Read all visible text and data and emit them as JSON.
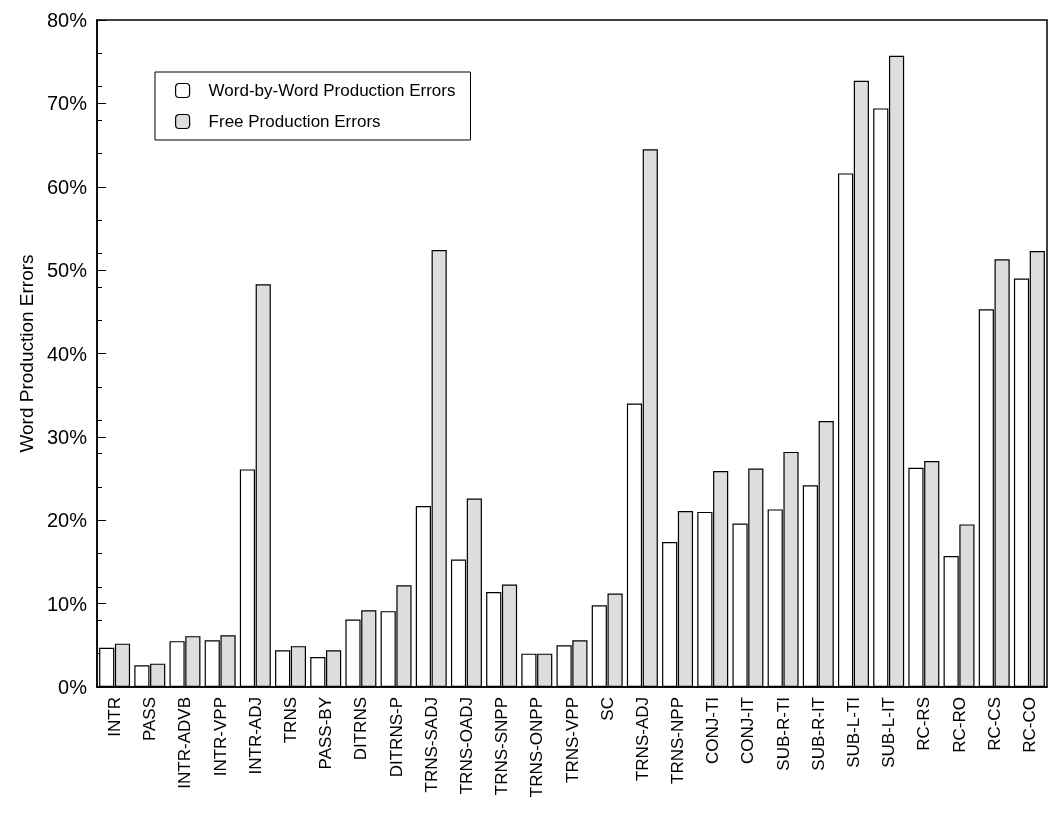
{
  "chart_data": {
    "type": "bar",
    "ylabel": "Word Production Errors",
    "categories": [
      "INTR",
      "PASS",
      "INTR-ADVB",
      "INTR-VPP",
      "INTR-ADJ",
      "TRNS",
      "PASS-BY",
      "DITRNS",
      "DITRNS-P",
      "TRNS-SADJ",
      "TRNS-OADJ",
      "TRNS-SNPP",
      "TRNS-ONPP",
      "TRNS-VPP",
      "SC",
      "TRNS-ADJ",
      "TRNS-NPP",
      "CONJ-TI",
      "CONJ-IT",
      "SUB-R-TI",
      "SUB-R-IT",
      "SUB-L-TI",
      "SUB-L-IT",
      "RC-RS",
      "RC-RO",
      "RC-CS",
      "RC-CO"
    ],
    "series": [
      {
        "name": "Word-by-Word Production Errors",
        "color": "#ffffff",
        "values": [
          4.7,
          2.6,
          5.5,
          5.6,
          26.1,
          4.4,
          3.6,
          8.1,
          9.1,
          21.7,
          15.3,
          11.4,
          4.0,
          5.0,
          9.8,
          34.0,
          17.4,
          21.0,
          19.6,
          21.3,
          24.2,
          61.6,
          69.4,
          26.3,
          15.7,
          45.3,
          49.0
        ]
      },
      {
        "name": "Free Production Errors",
        "color": "#dddddd",
        "values": [
          5.2,
          2.8,
          6.1,
          6.2,
          48.3,
          4.9,
          4.4,
          9.2,
          12.2,
          52.4,
          22.6,
          12.3,
          4.0,
          5.6,
          11.2,
          64.5,
          21.1,
          25.9,
          26.2,
          28.2,
          31.9,
          72.7,
          75.7,
          27.1,
          19.5,
          51.3,
          52.3
        ]
      }
    ],
    "ylim": [
      0,
      80
    ],
    "yticks": [
      {
        "value": 0,
        "label": "0%"
      },
      {
        "value": 10,
        "label": "10%"
      },
      {
        "value": 20,
        "label": "20%"
      },
      {
        "value": 30,
        "label": "30%"
      },
      {
        "value": 40,
        "label": "40%"
      },
      {
        "value": 50,
        "label": "50%"
      },
      {
        "value": 60,
        "label": "60%"
      },
      {
        "value": 70,
        "label": "70%"
      },
      {
        "value": 80,
        "label": "80%"
      }
    ],
    "grid": false,
    "legend": "top left"
  }
}
